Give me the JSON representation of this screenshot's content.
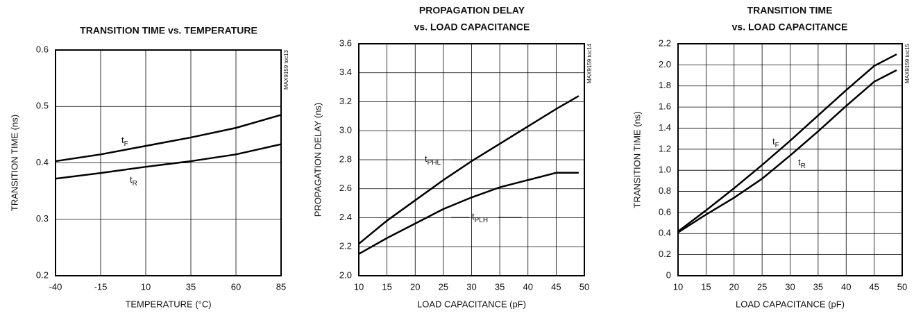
{
  "chart_data": [
    {
      "type": "line",
      "title": [
        "TRANSITION TIME vs. TEMPERATURE"
      ],
      "note": "MAX9159 toc13",
      "x_label": "TEMPERATURE (°C)",
      "y_label": "TRANSITION TIME (ns)",
      "xlim": [
        -40,
        85
      ],
      "xticks": [
        -40,
        -15,
        10,
        35,
        60,
        85
      ],
      "ylim": [
        0.2,
        0.6
      ],
      "yticks": [
        0.2,
        0.3,
        0.4,
        0.5,
        0.6
      ],
      "grid": true,
      "x": [
        -40,
        -15,
        10,
        35,
        60,
        85
      ],
      "series": [
        {
          "name": "tF",
          "color": "#000000",
          "values": [
            0.403,
            0.415,
            0.43,
            0.445,
            0.462,
            0.485
          ]
        },
        {
          "name": "tR",
          "color": "#000000",
          "values": [
            0.372,
            0.382,
            0.393,
            0.403,
            0.415,
            0.433
          ]
        }
      ]
    },
    {
      "type": "line",
      "title": [
        "PROPAGATION DELAY",
        "vs. LOAD CAPACITANCE"
      ],
      "note": "MAX9159 toc14",
      "x_label": "LOAD CAPACITANCE (pF)",
      "y_label": "PROPAGATION DELAY (ns)",
      "xlim": [
        10,
        50
      ],
      "xticks": [
        10,
        15,
        20,
        25,
        30,
        35,
        40,
        45,
        50
      ],
      "ylim": [
        2.0,
        3.6
      ],
      "yticks": [
        {
          "value": 2.0,
          "label": "2.0"
        },
        2.2,
        2.4,
        2.6,
        2.8,
        {
          "value": 3.0,
          "label": "3.0"
        },
        3.2,
        3.4,
        3.6
      ],
      "grid": true,
      "x": [
        10,
        15,
        20,
        25,
        30,
        35,
        40,
        45,
        49
      ],
      "series": [
        {
          "name": "tPHL",
          "color": "#000000",
          "values": [
            2.22,
            2.38,
            2.52,
            2.66,
            2.79,
            2.91,
            3.03,
            3.15,
            3.24
          ]
        },
        {
          "name": "tPLH",
          "color": "#000000",
          "values": [
            2.15,
            2.26,
            2.36,
            2.46,
            2.54,
            2.61,
            2.66,
            2.71,
            2.71
          ]
        }
      ]
    },
    {
      "type": "line",
      "title": [
        "TRANSITION TIME",
        "vs. LOAD CAPACITANCE"
      ],
      "note": "MAX9159 toc15",
      "x_label": "LOAD CAPACITANCE (pF)",
      "y_label": "TRANSITION TIME (ns)",
      "xlim": [
        10,
        50
      ],
      "xticks": [
        10,
        15,
        20,
        25,
        30,
        35,
        40,
        45,
        50
      ],
      "ylim": [
        0,
        2.2
      ],
      "yticks": [
        0,
        0.2,
        0.4,
        0.6,
        0.8,
        {
          "value": 1.0,
          "label": "1.0"
        },
        1.2,
        1.4,
        1.6,
        1.8,
        {
          "value": 2.0,
          "label": "2.0"
        },
        2.2
      ],
      "grid": true,
      "x": [
        10,
        15,
        20,
        25,
        30,
        35,
        40,
        45,
        49
      ],
      "series": [
        {
          "name": "tF",
          "color": "#000000",
          "values": [
            0.42,
            0.62,
            0.83,
            1.05,
            1.28,
            1.52,
            1.76,
            1.99,
            2.1
          ]
        },
        {
          "name": "tR",
          "color": "#000000",
          "values": [
            0.41,
            0.58,
            0.74,
            0.92,
            1.14,
            1.37,
            1.61,
            1.84,
            1.95
          ]
        }
      ]
    }
  ]
}
